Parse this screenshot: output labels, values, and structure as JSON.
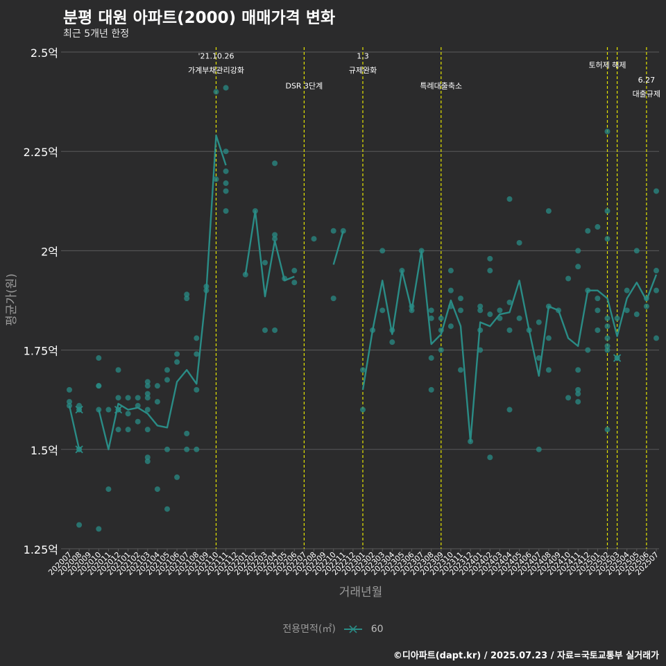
{
  "title": "분평 대원 아파트(2000) 매매가격 변화",
  "subtitle": "최근 5개년 한정",
  "caption": "©디아파트(dapt.kr) / 2025.07.23 / 자료=국토교통부 실거래가",
  "legend": {
    "title": "전용면적(㎡)",
    "item": "60"
  },
  "colors": {
    "background": "#2b2b2c",
    "series": "#2a8c86",
    "grid": "#5b5b5b",
    "event_line": "#e6e600",
    "text": "#ffffff",
    "axis_title": "#9b9b9b"
  },
  "chart_data": {
    "type": "line",
    "xlabel": "거래년월",
    "ylabel": "평균가(원)",
    "ylim": [
      1.25,
      2.5
    ],
    "yticks": [
      {
        "value": 1.25,
        "label": "1.25억"
      },
      {
        "value": 1.5,
        "label": "1.5억"
      },
      {
        "value": 1.75,
        "label": "1.75억"
      },
      {
        "value": 2.0,
        "label": "2억"
      },
      {
        "value": 2.25,
        "label": "2.25억"
      },
      {
        "value": 2.5,
        "label": "2.5억"
      }
    ],
    "months": [
      "202007",
      "202008",
      "202009",
      "202010",
      "202011",
      "202012",
      "202101",
      "202102",
      "202103",
      "202104",
      "202105",
      "202106",
      "202107",
      "202108",
      "202109",
      "202110",
      "202111",
      "202112",
      "202201",
      "202202",
      "202203",
      "202204",
      "202205",
      "202206",
      "202207",
      "202208",
      "202209",
      "202210",
      "202211",
      "202212",
      "202301",
      "202302",
      "202303",
      "202304",
      "202305",
      "202306",
      "202307",
      "202308",
      "202309",
      "202310",
      "202311",
      "202312",
      "202401",
      "202402",
      "202403",
      "202404",
      "202405",
      "202406",
      "202407",
      "202408",
      "202409",
      "202410",
      "202411",
      "202412",
      "202501",
      "202502",
      "202503",
      "202504",
      "202505",
      "202506",
      "202507"
    ],
    "series_name": "60",
    "mean_line": [
      1.61,
      1.5,
      null,
      1.6,
      1.5,
      1.615,
      1.6,
      1.605,
      1.59,
      1.56,
      1.555,
      1.67,
      1.7,
      1.665,
      1.9,
      2.29,
      2.215,
      null,
      1.94,
      2.1,
      1.885,
      2.025,
      1.925,
      1.935,
      null,
      null,
      null,
      1.965,
      2.05,
      null,
      1.65,
      1.8,
      1.925,
      1.79,
      1.95,
      1.85,
      2.0,
      1.765,
      1.79,
      1.875,
      1.81,
      1.52,
      1.82,
      1.81,
      1.84,
      1.845,
      1.925,
      1.8,
      1.685,
      1.86,
      1.85,
      1.78,
      1.76,
      1.9,
      1.9,
      1.88,
      1.785,
      1.88,
      1.92,
      1.875,
      1.94
    ],
    "points": [
      [
        0,
        1.65
      ],
      [
        0,
        1.62
      ],
      [
        0,
        1.61
      ],
      [
        1,
        1.6
      ],
      [
        1,
        1.61
      ],
      [
        1,
        1.5
      ],
      [
        1,
        1.31
      ],
      [
        3,
        1.73
      ],
      [
        3,
        1.66
      ],
      [
        3,
        1.66
      ],
      [
        3,
        1.6
      ],
      [
        3,
        1.3
      ],
      [
        4,
        1.6
      ],
      [
        4,
        1.4
      ],
      [
        5,
        1.7
      ],
      [
        5,
        1.63
      ],
      [
        5,
        1.6
      ],
      [
        5,
        1.55
      ],
      [
        6,
        1.63
      ],
      [
        6,
        1.59
      ],
      [
        6,
        1.55
      ],
      [
        7,
        1.63
      ],
      [
        7,
        1.61
      ],
      [
        7,
        1.57
      ],
      [
        8,
        1.67
      ],
      [
        8,
        1.66
      ],
      [
        8,
        1.64
      ],
      [
        8,
        1.63
      ],
      [
        8,
        1.6
      ],
      [
        8,
        1.55
      ],
      [
        8,
        1.48
      ],
      [
        8,
        1.47
      ],
      [
        9,
        1.66
      ],
      [
        9,
        1.62
      ],
      [
        9,
        1.4
      ],
      [
        10,
        1.7
      ],
      [
        10,
        1.675
      ],
      [
        10,
        1.5
      ],
      [
        10,
        1.35
      ],
      [
        11,
        1.74
      ],
      [
        11,
        1.72
      ],
      [
        11,
        1.43
      ],
      [
        12,
        1.89
      ],
      [
        12,
        1.88
      ],
      [
        12,
        1.54
      ],
      [
        12,
        1.5
      ],
      [
        13,
        1.78
      ],
      [
        13,
        1.74
      ],
      [
        13,
        1.65
      ],
      [
        13,
        1.5
      ],
      [
        14,
        1.91
      ],
      [
        14,
        1.9
      ],
      [
        15,
        2.4
      ],
      [
        15,
        2.18
      ],
      [
        16,
        2.41
      ],
      [
        16,
        2.25
      ],
      [
        16,
        2.2
      ],
      [
        16,
        2.17
      ],
      [
        16,
        2.15
      ],
      [
        16,
        2.1
      ],
      [
        18,
        1.94
      ],
      [
        19,
        2.1
      ],
      [
        20,
        1.97
      ],
      [
        20,
        1.8
      ],
      [
        21,
        2.22
      ],
      [
        21,
        2.04
      ],
      [
        21,
        2.03
      ],
      [
        21,
        1.8
      ],
      [
        22,
        1.93
      ],
      [
        23,
        1.95
      ],
      [
        23,
        1.92
      ],
      [
        25,
        2.03
      ],
      [
        27,
        2.05
      ],
      [
        27,
        1.88
      ],
      [
        28,
        2.05
      ],
      [
        30,
        1.7
      ],
      [
        30,
        1.6
      ],
      [
        31,
        1.8
      ],
      [
        32,
        2.0
      ],
      [
        32,
        1.85
      ],
      [
        33,
        1.8
      ],
      [
        33,
        1.77
      ],
      [
        34,
        1.95
      ],
      [
        35,
        1.86
      ],
      [
        35,
        1.85
      ],
      [
        36,
        2.0
      ],
      [
        37,
        1.85
      ],
      [
        37,
        1.83
      ],
      [
        37,
        1.73
      ],
      [
        37,
        1.65
      ],
      [
        38,
        1.83
      ],
      [
        38,
        1.8
      ],
      [
        38,
        1.75
      ],
      [
        39,
        1.95
      ],
      [
        39,
        1.9
      ],
      [
        39,
        1.86
      ],
      [
        39,
        1.81
      ],
      [
        40,
        1.88
      ],
      [
        40,
        1.85
      ],
      [
        40,
        1.7
      ],
      [
        41,
        1.52
      ],
      [
        42,
        1.86
      ],
      [
        42,
        1.85
      ],
      [
        42,
        1.8
      ],
      [
        42,
        1.75
      ],
      [
        43,
        1.98
      ],
      [
        43,
        1.95
      ],
      [
        43,
        1.84
      ],
      [
        43,
        1.48
      ],
      [
        44,
        1.85
      ],
      [
        44,
        1.83
      ],
      [
        45,
        2.13
      ],
      [
        45,
        1.87
      ],
      [
        45,
        1.8
      ],
      [
        45,
        1.6
      ],
      [
        46,
        2.02
      ],
      [
        46,
        1.83
      ],
      [
        47,
        1.8
      ],
      [
        48,
        1.82
      ],
      [
        48,
        1.73
      ],
      [
        48,
        1.5
      ],
      [
        49,
        2.1
      ],
      [
        49,
        1.86
      ],
      [
        49,
        1.78
      ],
      [
        49,
        1.7
      ],
      [
        50,
        1.85
      ],
      [
        51,
        1.93
      ],
      [
        51,
        1.63
      ],
      [
        52,
        2.0
      ],
      [
        52,
        1.96
      ],
      [
        52,
        1.7
      ],
      [
        52,
        1.65
      ],
      [
        52,
        1.64
      ],
      [
        52,
        1.62
      ],
      [
        53,
        2.05
      ],
      [
        53,
        1.9
      ],
      [
        53,
        1.75
      ],
      [
        54,
        2.06
      ],
      [
        54,
        1.88
      ],
      [
        54,
        1.85
      ],
      [
        54,
        1.8
      ],
      [
        55,
        2.3
      ],
      [
        55,
        2.1
      ],
      [
        55,
        2.03
      ],
      [
        55,
        1.83
      ],
      [
        55,
        1.81
      ],
      [
        55,
        1.78
      ],
      [
        55,
        1.76
      ],
      [
        55,
        1.75
      ],
      [
        55,
        1.55
      ],
      [
        56,
        1.83
      ],
      [
        56,
        1.73
      ],
      [
        57,
        1.9
      ],
      [
        57,
        1.85
      ],
      [
        58,
        2.0
      ],
      [
        58,
        1.84
      ],
      [
        59,
        1.88
      ],
      [
        59,
        1.86
      ],
      [
        60,
        2.15
      ],
      [
        60,
        1.95
      ],
      [
        60,
        1.9
      ],
      [
        60,
        1.78
      ]
    ],
    "x_markers": [
      [
        1,
        1.6
      ],
      [
        1,
        1.5
      ],
      [
        5,
        1.6
      ],
      [
        56,
        1.73
      ]
    ],
    "events": [
      {
        "index": 15,
        "label_lines": [
          "'21.10.26",
          "가계부채관리강화"
        ],
        "label_y": [
          2.49,
          2.455
        ]
      },
      {
        "index": 24,
        "label_lines": [
          "DSR 3단계"
        ],
        "label_y": [
          2.415
        ]
      },
      {
        "index": 30,
        "label_lines": [
          "1.3",
          "규제완화"
        ],
        "label_y": [
          2.49,
          2.455
        ]
      },
      {
        "index": 38,
        "label_lines": [
          "특례대출축소"
        ],
        "label_y": [
          2.415
        ]
      },
      {
        "index": 55,
        "label_lines": [
          "토허제 해제"
        ],
        "label_y": [
          2.468
        ]
      },
      {
        "index": 56,
        "label_lines": [],
        "label_y": []
      },
      {
        "index": 59,
        "label_lines": [
          "6.27",
          "대출규제"
        ],
        "label_y": [
          2.43,
          2.395
        ]
      }
    ]
  }
}
